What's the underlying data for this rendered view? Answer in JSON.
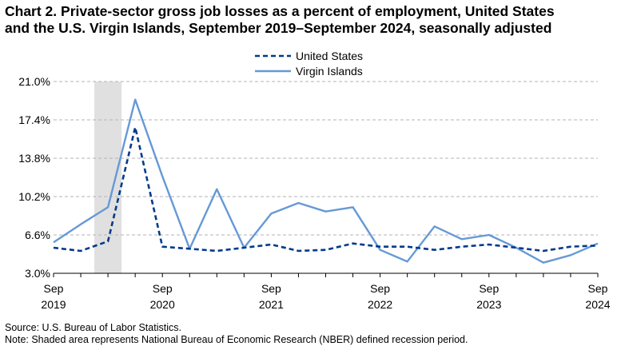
{
  "title_line1": "Chart 2. Private-sector gross job losses as a percent of employment, United States",
  "title_line2": "and the U.S.  Virgin Islands, September 2019–September 2024, seasonally adjusted",
  "source": "Source: U.S. Bureau of Labor Statistics.",
  "note": "Note: Shaded area represents National Bureau of Economic Research (NBER) defined recession period.",
  "chart_data": {
    "type": "line",
    "x": [
      "Sep 2019",
      "Dec 2019",
      "Mar 2020",
      "Jun 2020",
      "Sep 2020",
      "Dec 2020",
      "Mar 2021",
      "Jun 2021",
      "Sep 2021",
      "Dec 2021",
      "Mar 2022",
      "Jun 2022",
      "Sep 2022",
      "Dec 2022",
      "Mar 2023",
      "Jun 2023",
      "Sep 2023",
      "Dec 2023",
      "Mar 2024",
      "Jun 2024",
      "Sep 2024"
    ],
    "x_ticks": [
      {
        "index": 0,
        "month": "Sep",
        "year": "2019"
      },
      {
        "index": 4,
        "month": "Sep",
        "year": "2020"
      },
      {
        "index": 8,
        "month": "Sep",
        "year": "2021"
      },
      {
        "index": 12,
        "month": "Sep",
        "year": "2022"
      },
      {
        "index": 16,
        "month": "Sep",
        "year": "2023"
      },
      {
        "index": 20,
        "month": "Sep",
        "year": "2024"
      }
    ],
    "y_ticks": [
      "3.0%",
      "6.6%",
      "10.2%",
      "13.8%",
      "17.4%",
      "21.0%"
    ],
    "ylim": [
      3.0,
      21.0
    ],
    "grid": "horizontal dashed",
    "legend_position": "top-center",
    "recession": {
      "start_index": 1.5,
      "end_index": 2.5
    },
    "series": [
      {
        "name": "United States",
        "style": "dashed",
        "color": "#003a8c",
        "values": [
          5.4,
          5.1,
          6.0,
          16.7,
          5.5,
          5.3,
          5.1,
          5.4,
          5.7,
          5.1,
          5.2,
          5.8,
          5.5,
          5.5,
          5.2,
          5.5,
          5.7,
          5.4,
          5.1,
          5.5,
          5.6
        ]
      },
      {
        "name": "Virgin Islands",
        "style": "solid",
        "color": "#6699d6",
        "values": [
          5.9,
          7.6,
          9.2,
          19.3,
          12.1,
          5.3,
          10.9,
          5.4,
          8.6,
          9.6,
          8.8,
          9.2,
          5.2,
          4.1,
          7.4,
          6.2,
          6.6,
          5.4,
          4.0,
          4.7,
          5.8
        ]
      }
    ],
    "colors": {
      "grid": "#b3b3b3",
      "recession": "#e0e0e0",
      "axis": "#000000"
    }
  }
}
